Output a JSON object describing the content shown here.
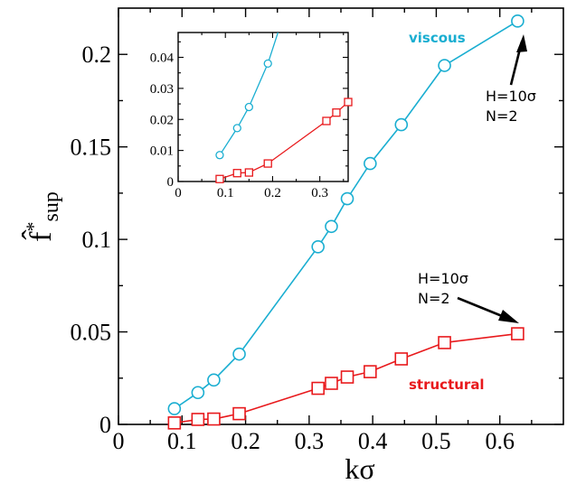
{
  "chart_data": [
    {
      "type": "line",
      "xlabel": "kσ",
      "ylabel": "f̂*sup",
      "xlim": [
        0,
        0.7
      ],
      "ylim": [
        0,
        0.225
      ],
      "x_ticks": [
        "0",
        "0.1",
        "0.2",
        "0.3",
        "0.4",
        "0.5",
        "0.6"
      ],
      "y_ticks": [
        "0",
        "0.05",
        "0.1",
        "0.15",
        "0.2"
      ],
      "grid": false,
      "series": [
        {
          "name": "viscous",
          "color": "#1aaed1",
          "marker": "circle",
          "x": [
            0.088,
            0.125,
            0.15,
            0.19,
            0.314,
            0.335,
            0.36,
            0.396,
            0.445,
            0.513,
            0.628
          ],
          "y": [
            0.0085,
            0.0172,
            0.024,
            0.038,
            0.096,
            0.107,
            0.122,
            0.141,
            0.162,
            0.194,
            0.218
          ]
        },
        {
          "name": "structural",
          "color": "#e8191c",
          "marker": "square",
          "x": [
            0.088,
            0.125,
            0.15,
            0.19,
            0.314,
            0.335,
            0.36,
            0.396,
            0.445,
            0.513,
            0.628
          ],
          "y": [
            0.0008,
            0.0027,
            0.0029,
            0.0058,
            0.0195,
            0.0222,
            0.0256,
            0.0285,
            0.0354,
            0.0442,
            0.049
          ]
        }
      ],
      "annotations": [
        {
          "series": "viscous",
          "lines": [
            "H=10σ",
            "N=2"
          ]
        },
        {
          "series": "structural",
          "lines": [
            "H=10σ",
            "N=2"
          ]
        }
      ]
    },
    {
      "type": "line",
      "role": "inset",
      "xlim": [
        0,
        0.36
      ],
      "ylim": [
        0,
        0.048
      ],
      "x_ticks": [
        "0",
        "0.1",
        "0.2",
        "0.3"
      ],
      "y_ticks": [
        "0",
        "0.01",
        "0.02",
        "0.03",
        "0.04"
      ],
      "series": [
        {
          "name": "viscous",
          "color": "#1aaed1",
          "marker": "circle",
          "x": [
            0.088,
            0.125,
            0.15,
            0.19,
            0.314
          ],
          "y": [
            0.0085,
            0.0172,
            0.024,
            0.038,
            0.096
          ]
        },
        {
          "name": "structural",
          "color": "#e8191c",
          "marker": "square",
          "x": [
            0.088,
            0.125,
            0.15,
            0.19,
            0.314,
            0.335,
            0.36
          ],
          "y": [
            0.0008,
            0.0027,
            0.0029,
            0.0058,
            0.0195,
            0.0222,
            0.0256
          ]
        }
      ]
    }
  ]
}
